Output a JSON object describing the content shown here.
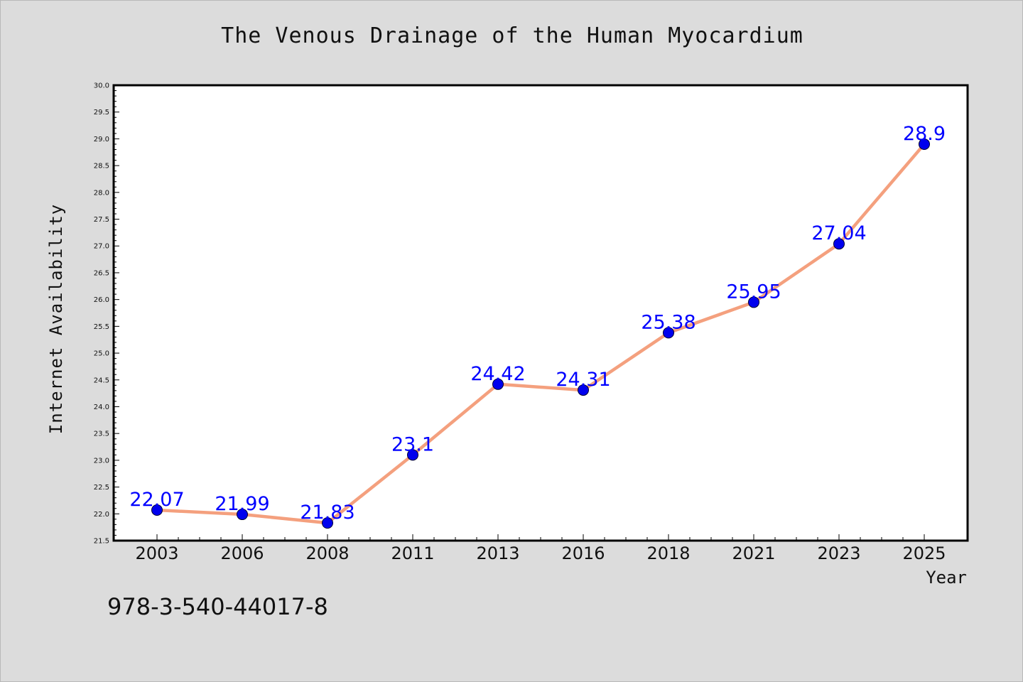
{
  "chart_data": {
    "type": "line",
    "title": "The Venous Drainage of the Human Myocardium",
    "xlabel": "Year",
    "ylabel": "Internet Availability",
    "categories": [
      "2003",
      "2006",
      "2008",
      "2011",
      "2013",
      "2016",
      "2018",
      "2021",
      "2023",
      "2025"
    ],
    "series": [
      {
        "values": [
          22.07,
          21.99,
          21.83,
          23.1,
          24.42,
          24.31,
          25.38,
          25.95,
          27.04,
          28.9
        ],
        "labels": [
          "22.07",
          "21.99",
          "21.83",
          "23.1",
          "24.42",
          "24.31",
          "25.38",
          "25.95",
          "27.04",
          "28.9"
        ]
      }
    ],
    "ylim": [
      21.5,
      30.0
    ],
    "yticks": [
      "21.5",
      "22.0",
      "22.5",
      "23.0",
      "23.5",
      "24.0",
      "24.5",
      "25.0",
      "25.5",
      "26.0",
      "26.5",
      "27.0",
      "27.5",
      "28.0",
      "28.5",
      "29.0",
      "29.5",
      "30.0"
    ],
    "grid": false,
    "colors": {
      "line": "#f4a07e",
      "marker": "#0000ee",
      "data_label": "#0000ff",
      "background": "#dcdcdc",
      "plot_background": "#ffffff"
    }
  },
  "footer": {
    "isbn": "978-3-540-44017-8"
  }
}
